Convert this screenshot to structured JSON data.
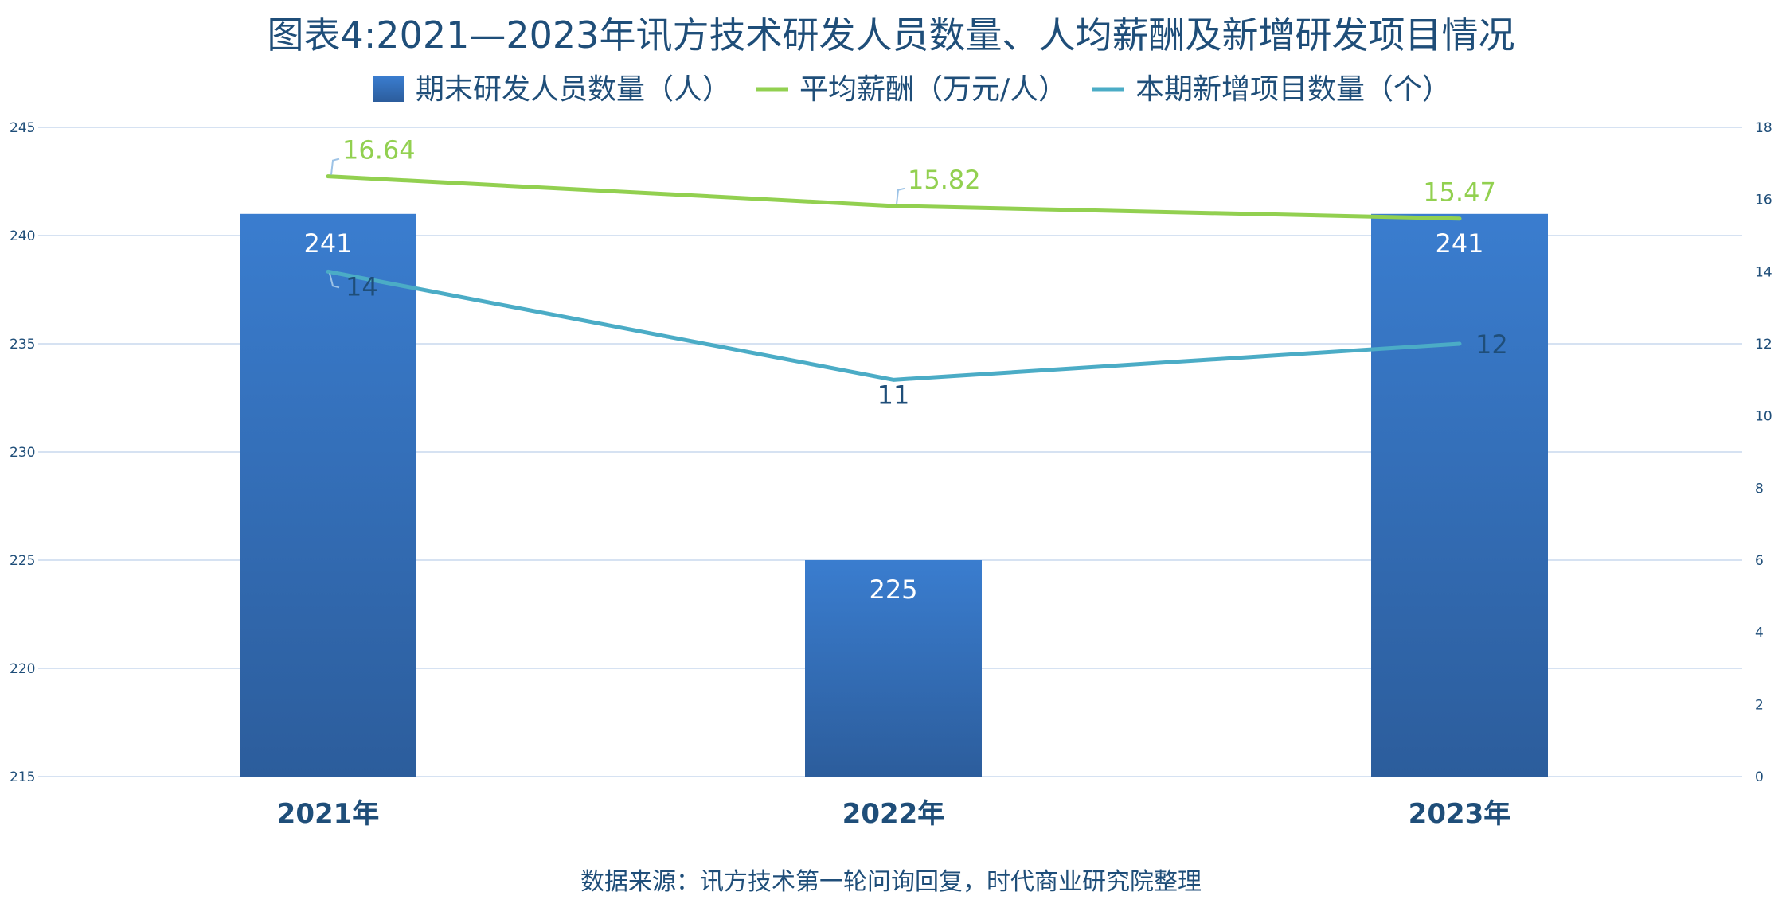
{
  "chart_data": {
    "type": "bar",
    "title": "图表4:2021—2023年讯方技术研发人员数量、人均薪酬及新增研发项目情况",
    "source": "数据来源：讯方技术第一轮问询回复，时代商业研究院整理",
    "categories": [
      "2021年",
      "2022年",
      "2023年"
    ],
    "legend_position": "top",
    "grid": true,
    "y_left": {
      "ylim": [
        215,
        245
      ],
      "ticks": [
        "215",
        "220",
        "225",
        "230",
        "235",
        "240",
        "245"
      ]
    },
    "y_right": {
      "ylim": [
        0,
        18
      ],
      "ticks": [
        "0",
        "2",
        "4",
        "6",
        "8",
        "10",
        "12",
        "14",
        "16",
        "18"
      ]
    },
    "series": [
      {
        "name": "期末研发人员数量（人）",
        "type": "bar",
        "axis": "left",
        "color": "#2e75b6",
        "values": [
          241,
          225,
          241
        ],
        "labels": [
          "241",
          "225",
          "241"
        ]
      },
      {
        "name": "平均薪酬（万元/人）",
        "type": "line",
        "axis": "right",
        "color": "#92d050",
        "values": [
          16.64,
          15.82,
          15.47
        ],
        "labels": [
          "16.64",
          "15.82",
          "15.47"
        ]
      },
      {
        "name": "本期新增项目数量（个）",
        "type": "line",
        "axis": "right",
        "color": "#4bacc6",
        "values": [
          14,
          11,
          12
        ],
        "labels": [
          "14",
          "11",
          "12"
        ]
      }
    ]
  }
}
